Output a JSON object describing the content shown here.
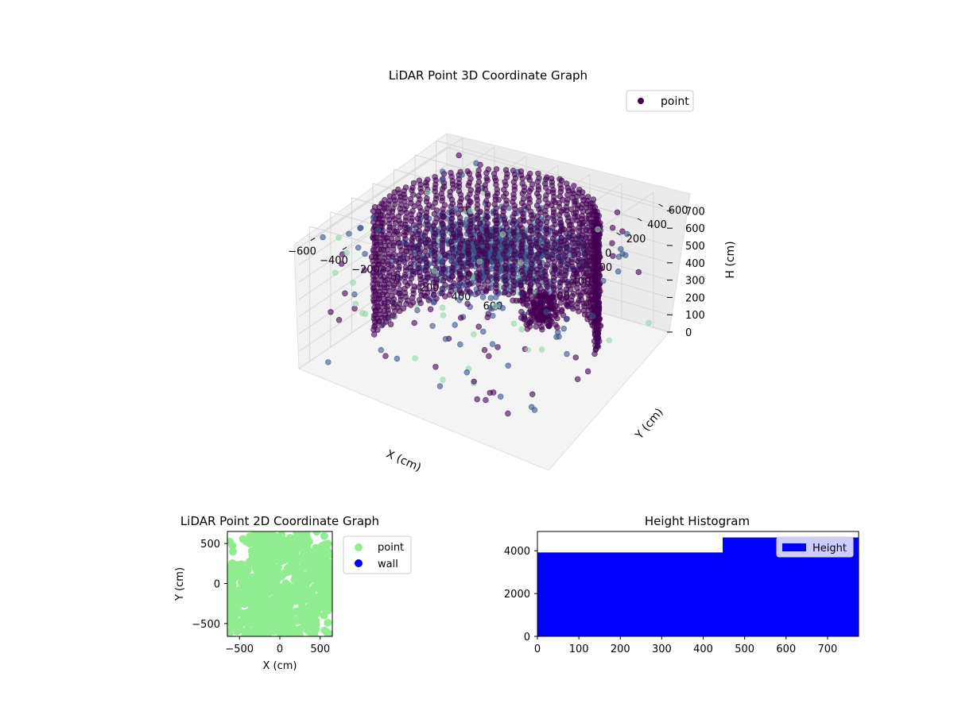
{
  "chart_data": [
    {
      "type": "scatter",
      "projection": "3d",
      "title": "LiDAR Point 3D Coordinate Graph",
      "xlabel": "X (cm)",
      "ylabel": "Y (cm)",
      "zlabel": "H (cm)",
      "xlim": [
        -700,
        700
      ],
      "ylim": [
        -700,
        700
      ],
      "zlim": [
        0,
        780
      ],
      "z_inverted": true,
      "xticks": [
        "−600",
        "−400",
        "−200",
        "0",
        "200",
        "400",
        "600"
      ],
      "yticks": [
        "−600",
        "−400",
        "−200",
        "0",
        "200",
        "400",
        "600"
      ],
      "zticks": [
        "0",
        "100",
        "200",
        "300",
        "400",
        "500",
        "600",
        "700"
      ],
      "grid": true,
      "legend": {
        "placement": "top-right",
        "entries": [
          "point"
        ]
      },
      "colormap": "viridis",
      "colors": {
        "near": "#440154",
        "mid": "#3b528b",
        "far": "#90d7a8"
      },
      "series": [
        {
          "name": "point",
          "description_values": {
            "wall_arc": {
              "radius_cm": 620,
              "angle_deg": [
                20,
                200
              ],
              "height_cm": [
                0,
                780
              ]
            },
            "floor_fan": {
              "center_cm": [
                150,
                -150
              ],
              "height_cm": [
                620,
                720
              ]
            },
            "ceiling_cluster": {
              "center_cm": [
                180,
                280
              ],
              "height_cm": [
                100,
                250
              ]
            }
          }
        }
      ]
    },
    {
      "type": "scatter",
      "title": "LiDAR Point 2D Coordinate Graph",
      "xlabel": "X (cm)",
      "ylabel": "Y (cm)",
      "xlim": [
        -650,
        650
      ],
      "ylim": [
        -660,
        650
      ],
      "xticks": [
        "−500",
        "0",
        "500"
      ],
      "yticks": [
        "−500",
        "0",
        "500"
      ],
      "legend": {
        "placement": "outside-right",
        "entries": [
          "point",
          "wall"
        ]
      },
      "colors": {
        "point": "#90ee90",
        "wall": "#0000ff"
      },
      "series": [
        {
          "name": "point",
          "coverage": "dense"
        },
        {
          "name": "wall",
          "coverage": "none visible"
        }
      ]
    },
    {
      "type": "bar",
      "subtype": "histogram",
      "title": "Height Histogram",
      "xlim": [
        0,
        775
      ],
      "ylim": [
        0,
        4900
      ],
      "xticks": [
        "0",
        "100",
        "200",
        "300",
        "400",
        "500",
        "600",
        "700"
      ],
      "yticks": [
        "0",
        "2000",
        "4000"
      ],
      "legend": {
        "placement": "top-right",
        "entries": [
          "Height"
        ]
      },
      "colors": {
        "bar": "#0000ff"
      },
      "bins": [
        {
          "x0": 0,
          "x1": 447,
          "count": 3920
        },
        {
          "x0": 447,
          "x1": 775,
          "count": 4620
        }
      ],
      "series": [
        {
          "name": "Height"
        }
      ]
    }
  ]
}
